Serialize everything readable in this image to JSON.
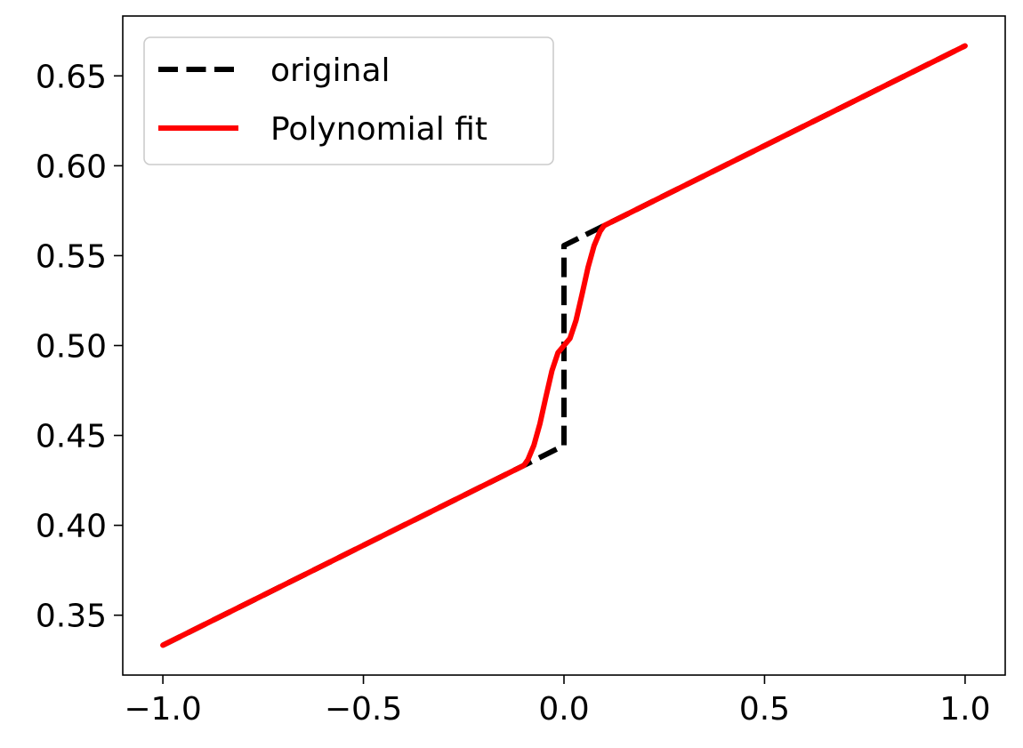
{
  "chart_data": {
    "type": "line",
    "title": "",
    "xlabel": "",
    "ylabel": "",
    "xlim": [
      -1.1,
      1.1
    ],
    "ylim": [
      0.3167,
      0.6833
    ],
    "x_ticks": [
      {
        "value": -1.0,
        "label": "−1.0"
      },
      {
        "value": -0.5,
        "label": "−0.5"
      },
      {
        "value": 0.0,
        "label": "0.0"
      },
      {
        "value": 0.5,
        "label": "0.5"
      },
      {
        "value": 1.0,
        "label": "1.0"
      }
    ],
    "y_ticks": [
      {
        "value": 0.35,
        "label": "0.35"
      },
      {
        "value": 0.4,
        "label": "0.40"
      },
      {
        "value": 0.45,
        "label": "0.45"
      },
      {
        "value": 0.5,
        "label": "0.50"
      },
      {
        "value": 0.55,
        "label": "0.55"
      },
      {
        "value": 0.6,
        "label": "0.60"
      },
      {
        "value": 0.65,
        "label": "0.65"
      }
    ],
    "grid": false,
    "legend_position": "top-left",
    "series": [
      {
        "name": "original",
        "color": "#000000",
        "style": "dashed",
        "x": [
          -1.0,
          -0.1,
          0.0,
          0.0,
          0.1,
          1.0
        ],
        "y": [
          0.3333,
          0.4333,
          0.4444,
          0.5556,
          0.5667,
          0.6667
        ]
      },
      {
        "name": "Polynomial fit",
        "color": "#ff0000",
        "style": "solid",
        "x": [
          -1.0,
          -0.1,
          -0.09,
          -0.075,
          -0.06,
          -0.045,
          -0.03,
          -0.015,
          0.0,
          0.015,
          0.03,
          0.045,
          0.06,
          0.075,
          0.09,
          0.1,
          1.0
        ],
        "y": [
          0.3333,
          0.4333,
          0.4365,
          0.4445,
          0.4565,
          0.4715,
          0.486,
          0.496,
          0.5,
          0.504,
          0.514,
          0.5285,
          0.5435,
          0.5555,
          0.5635,
          0.5667,
          0.6667
        ]
      }
    ]
  }
}
